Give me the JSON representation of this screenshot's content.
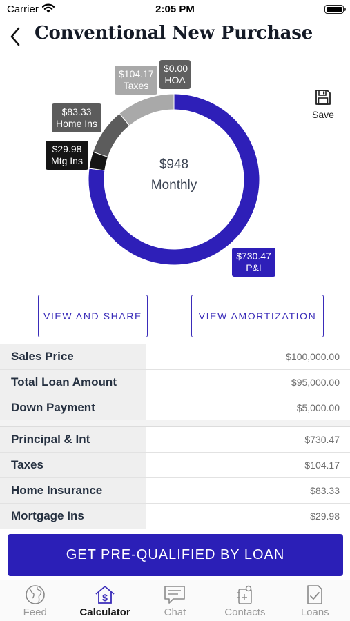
{
  "status_bar": {
    "carrier": "Carrier",
    "time": "2:05 PM"
  },
  "header": {
    "title": "Conventional New Purchase",
    "back_icon": "chevron-left-icon"
  },
  "save": {
    "label": "Save",
    "icon": "floppy-disk-icon"
  },
  "donut": {
    "center_amount": "$948",
    "center_caption": "Monthly",
    "slices": [
      {
        "key": "pi",
        "value": 730.47,
        "amount": "$730.47",
        "label": "P&I",
        "color": "#2e1fb8"
      },
      {
        "key": "mtgins",
        "value": 29.98,
        "amount": "$29.98",
        "label": "Mtg Ins",
        "color": "#151515"
      },
      {
        "key": "homeins",
        "value": 83.33,
        "amount": "$83.33",
        "label": "Home Ins",
        "color": "#5c5c5c"
      },
      {
        "key": "taxes",
        "value": 104.17,
        "amount": "$104.17",
        "label": "Taxes",
        "color": "#a9a9a9"
      },
      {
        "key": "hoa",
        "value": 0.0,
        "amount": "$0.00",
        "label": "HOA",
        "color": "#5f5f5f"
      }
    ]
  },
  "buttons": {
    "view_share": "VIEW AND SHARE",
    "view_amortization": "VIEW AMORTIZATION"
  },
  "loan_table": [
    {
      "label": "Sales Price",
      "value": "$100,000.00"
    },
    {
      "label": "Total Loan Amount",
      "value": "$95,000.00"
    },
    {
      "label": "Down Payment",
      "value": "$5,000.00"
    }
  ],
  "payment_table": [
    {
      "label": "Principal & Int",
      "value": "$730.47"
    },
    {
      "label": "Taxes",
      "value": "$104.17"
    },
    {
      "label": "Home Insurance",
      "value": "$83.33"
    },
    {
      "label": "Mortgage Ins",
      "value": "$29.98"
    }
  ],
  "cta": {
    "label": "GET PRE-QUALIFIED BY LOAN"
  },
  "tab_bar": {
    "active": "calculator",
    "tabs": [
      {
        "key": "feed",
        "label": "Feed",
        "icon": "globe-icon"
      },
      {
        "key": "calculator",
        "label": "Calculator",
        "icon": "house-dollar-icon"
      },
      {
        "key": "chat",
        "label": "Chat",
        "icon": "chat-bubble-icon"
      },
      {
        "key": "contacts",
        "label": "Contacts",
        "icon": "contacts-icon"
      },
      {
        "key": "loans",
        "label": "Loans",
        "icon": "document-check-icon"
      }
    ]
  },
  "colors": {
    "accent": "#2b1fb7",
    "label_bg": "#efefef"
  }
}
